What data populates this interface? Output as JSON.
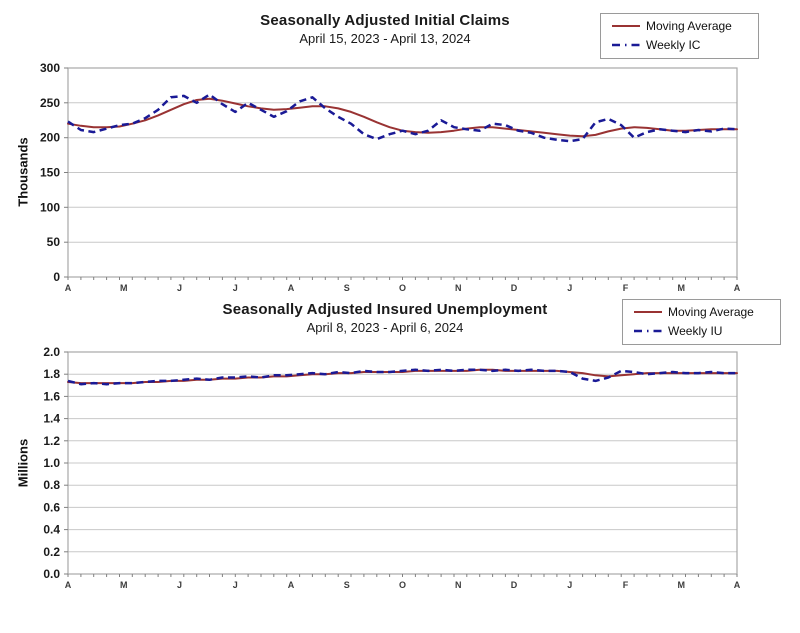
{
  "colors": {
    "moving_average": "#993333",
    "weekly": "#1a1a96",
    "gridline": "#c8c8c8",
    "plot_border": "#a8a8a8",
    "axis_tick": "#808080",
    "background": "#ffffff"
  },
  "chart_data": [
    {
      "type": "line",
      "title": "Seasonally Adjusted Initial Claims",
      "subtitle": "April 15, 2023 - April 13, 2024",
      "ylabel": "Thousands",
      "ylim": [
        0,
        300
      ],
      "yticks": [
        0,
        50,
        100,
        150,
        200,
        250,
        300
      ],
      "ytick_labels": [
        "0",
        "50",
        "100",
        "150",
        "200",
        "250",
        "300"
      ],
      "xtick_labels": [
        "A",
        "M",
        "J",
        "J",
        "A",
        "S",
        "O",
        "N",
        "D",
        "J",
        "F",
        "M",
        "A"
      ],
      "grid": "horizontal",
      "legend_position": "top-right",
      "legend": [
        {
          "label": "Moving Average",
          "style": "solid",
          "color": "#993333"
        },
        {
          "label": "Weekly IC",
          "style": "dashed",
          "color": "#1a1a96"
        }
      ],
      "series": [
        {
          "name": "Moving Average",
          "style": "solid",
          "color": "#993333",
          "values": [
            220,
            217,
            215,
            215,
            216,
            220,
            225,
            232,
            240,
            248,
            254,
            256,
            253,
            249,
            245,
            242,
            240,
            241,
            243,
            245,
            245,
            242,
            237,
            230,
            222,
            215,
            210,
            208,
            207,
            208,
            210,
            213,
            215,
            215,
            213,
            211,
            209,
            207,
            205,
            203,
            202,
            204,
            209,
            213,
            215,
            214,
            212,
            210,
            210,
            211,
            212,
            212,
            212
          ]
        },
        {
          "name": "Weekly IC",
          "style": "dashed",
          "color": "#1a1a96",
          "values": [
            223,
            211,
            208,
            213,
            218,
            220,
            228,
            240,
            258,
            260,
            250,
            262,
            248,
            237,
            250,
            240,
            230,
            238,
            252,
            258,
            242,
            230,
            220,
            205,
            198,
            205,
            210,
            205,
            210,
            225,
            215,
            212,
            210,
            220,
            218,
            210,
            207,
            200,
            197,
            195,
            198,
            222,
            227,
            218,
            200,
            208,
            212,
            210,
            208,
            211,
            209,
            213,
            212
          ]
        }
      ]
    },
    {
      "type": "line",
      "title": "Seasonally Adjusted Insured Unemployment",
      "subtitle": "April 8, 2023 - April 6, 2024",
      "ylabel": "Millions",
      "ylim": [
        0,
        2.0
      ],
      "yticks": [
        0,
        0.2,
        0.4,
        0.6,
        0.8,
        1.0,
        1.2,
        1.4,
        1.6,
        1.8,
        2.0
      ],
      "ytick_labels": [
        "0.0",
        "0.2",
        "0.4",
        "0.6",
        "0.8",
        "1.0",
        "1.2",
        "1.4",
        "1.6",
        "1.8",
        "2.0"
      ],
      "xtick_labels": [
        "A",
        "M",
        "J",
        "J",
        "A",
        "S",
        "O",
        "N",
        "D",
        "J",
        "F",
        "M",
        "A"
      ],
      "grid": "horizontal",
      "legend_position": "top-right",
      "legend": [
        {
          "label": "Moving Average",
          "style": "solid",
          "color": "#993333"
        },
        {
          "label": "Weekly IU",
          "style": "dashed",
          "color": "#1a1a96"
        }
      ],
      "series": [
        {
          "name": "Moving Average",
          "style": "solid",
          "color": "#993333",
          "values": [
            1.73,
            1.72,
            1.72,
            1.72,
            1.72,
            1.72,
            1.73,
            1.73,
            1.74,
            1.74,
            1.75,
            1.75,
            1.76,
            1.76,
            1.77,
            1.77,
            1.78,
            1.78,
            1.79,
            1.8,
            1.8,
            1.81,
            1.81,
            1.82,
            1.82,
            1.82,
            1.82,
            1.83,
            1.83,
            1.83,
            1.83,
            1.83,
            1.84,
            1.84,
            1.83,
            1.83,
            1.83,
            1.83,
            1.83,
            1.82,
            1.81,
            1.79,
            1.78,
            1.79,
            1.8,
            1.81,
            1.81,
            1.81,
            1.81,
            1.81,
            1.81,
            1.81,
            1.81
          ]
        },
        {
          "name": "Weekly IU",
          "style": "dashed",
          "color": "#1a1a96",
          "values": [
            1.74,
            1.71,
            1.72,
            1.71,
            1.72,
            1.72,
            1.73,
            1.74,
            1.74,
            1.75,
            1.76,
            1.75,
            1.77,
            1.77,
            1.78,
            1.77,
            1.79,
            1.79,
            1.8,
            1.81,
            1.8,
            1.82,
            1.81,
            1.83,
            1.82,
            1.82,
            1.83,
            1.84,
            1.83,
            1.84,
            1.83,
            1.84,
            1.84,
            1.83,
            1.84,
            1.83,
            1.84,
            1.83,
            1.83,
            1.82,
            1.76,
            1.74,
            1.77,
            1.83,
            1.82,
            1.8,
            1.81,
            1.82,
            1.81,
            1.81,
            1.82,
            1.81,
            1.81
          ]
        }
      ]
    }
  ]
}
